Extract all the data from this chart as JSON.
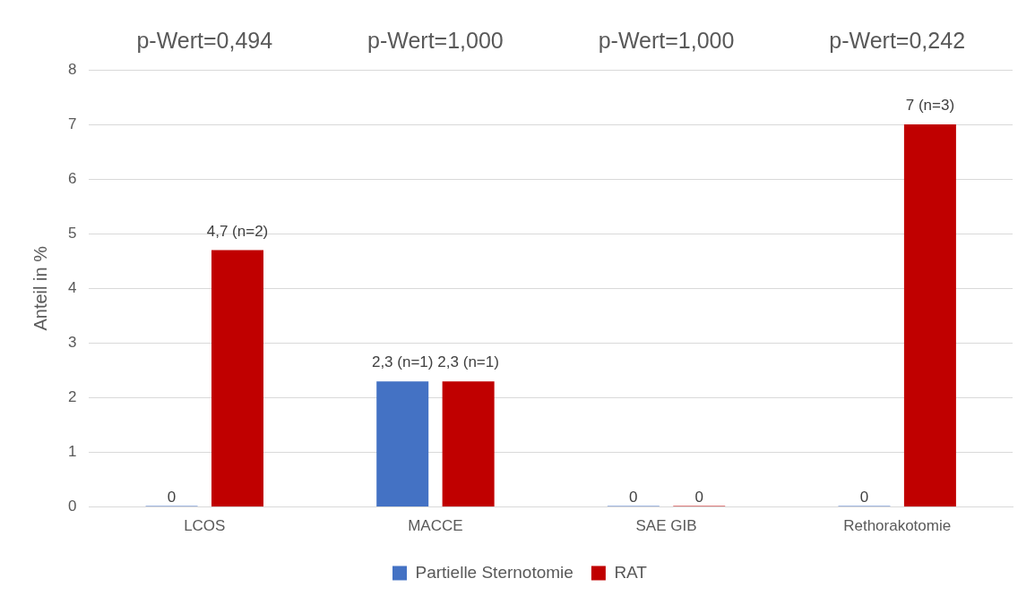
{
  "chart_data": {
    "type": "bar",
    "ylabel": "Anteil in %",
    "categories": [
      "LCOS",
      "MACCE",
      "SAE GIB",
      "Rethorakotomie"
    ],
    "series": [
      {
        "name": "Partielle Sternotomie",
        "color": "#4472c4",
        "values": [
          0,
          2.3,
          0,
          0
        ],
        "value_labels": [
          "0",
          "2,3 (n=1)",
          "0",
          "0"
        ]
      },
      {
        "name": "RAT",
        "color": "#c00000",
        "values": [
          4.7,
          2.3,
          0,
          7
        ],
        "value_labels": [
          "4,7 (n=2)",
          "2,3 (n=1)",
          "0",
          "7 (n=3)"
        ]
      }
    ],
    "annotations": [
      "p-Wert=0,494",
      "p-Wert=1,000",
      "p-Wert=1,000",
      "p-Wert=0,242"
    ],
    "ylim": [
      0,
      8
    ],
    "yticks": [
      0,
      1,
      2,
      3,
      4,
      5,
      6,
      7,
      8
    ],
    "grid": "y",
    "legend": "bottom"
  }
}
